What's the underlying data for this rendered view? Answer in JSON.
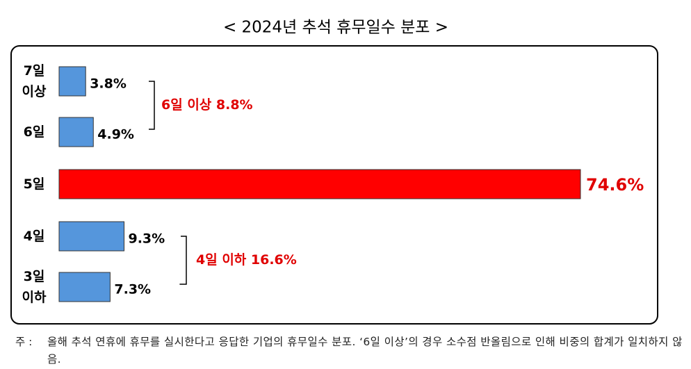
{
  "chart_data": {
    "type": "bar",
    "orientation": "horizontal",
    "title": "< 2024년 추석 휴무일수 분포 >",
    "categories": [
      "7일 이상",
      "6일",
      "5일",
      "4일",
      "3일 이하"
    ],
    "values": [
      3.8,
      4.9,
      74.6,
      9.3,
      7.3
    ],
    "value_labels": [
      "3.8%",
      "4.9%",
      "74.6%",
      "9.3%",
      "7.3%"
    ],
    "colors": [
      "#5596dc",
      "#5596dc",
      "#ff0000",
      "#5596dc",
      "#5596dc"
    ],
    "value_label_colors": [
      "#000000",
      "#000000",
      "#e00000",
      "#000000",
      "#000000"
    ],
    "annotations": [
      "6일 이상 8.8%",
      "4일 이하 16.6%"
    ],
    "note_marker": "주 :",
    "note": "올해 추석 연휴에 휴무를 실시한다고 응답한 기업의 휴무일수 분포. ‘6일 이상’의 경우 소수점 반올림으로 인해 비중의 합계가 일치하지 않음."
  }
}
